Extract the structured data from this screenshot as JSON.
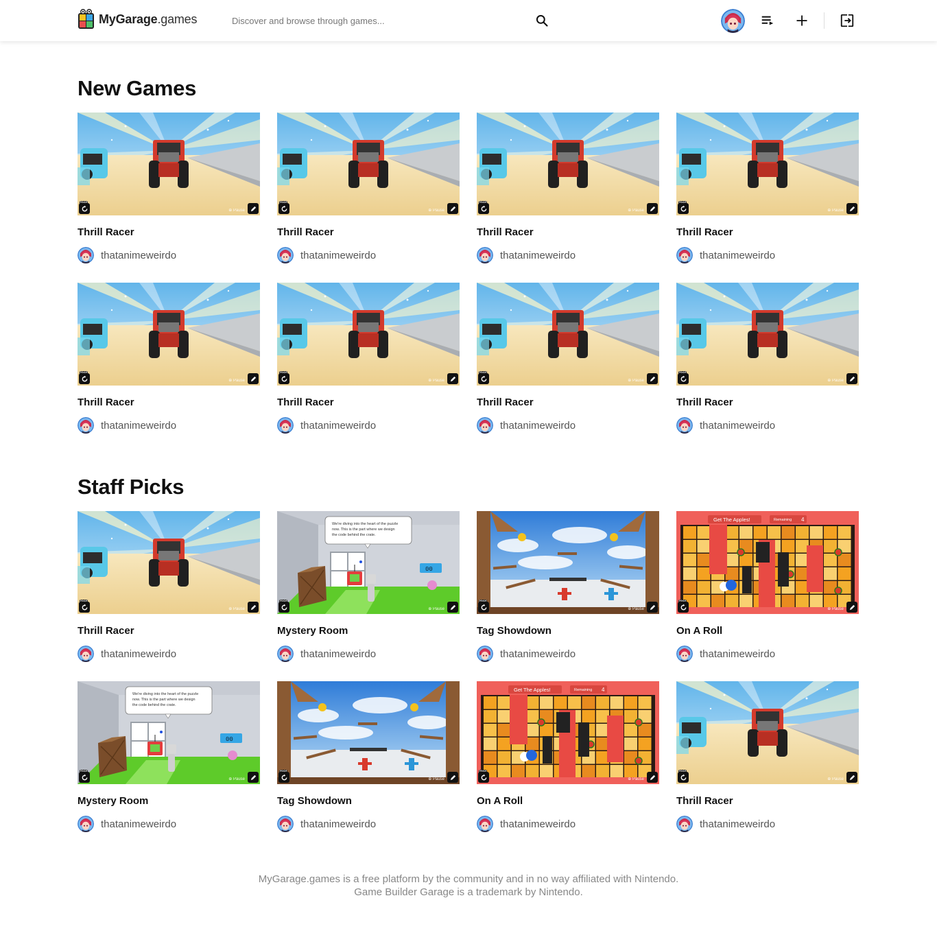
{
  "header": {
    "logo_bold": "MyGarage",
    "logo_light": ".games",
    "search_placeholder": "Discover and browse through games..."
  },
  "sections": [
    {
      "title": "New Games",
      "games": [
        {
          "title": "Thrill Racer",
          "author": "thatanimeweirdo",
          "scene": "racer"
        },
        {
          "title": "Thrill Racer",
          "author": "thatanimeweirdo",
          "scene": "racer"
        },
        {
          "title": "Thrill Racer",
          "author": "thatanimeweirdo",
          "scene": "racer"
        },
        {
          "title": "Thrill Racer",
          "author": "thatanimeweirdo",
          "scene": "racer"
        },
        {
          "title": "Thrill Racer",
          "author": "thatanimeweirdo",
          "scene": "racer"
        },
        {
          "title": "Thrill Racer",
          "author": "thatanimeweirdo",
          "scene": "racer"
        },
        {
          "title": "Thrill Racer",
          "author": "thatanimeweirdo",
          "scene": "racer"
        },
        {
          "title": "Thrill Racer",
          "author": "thatanimeweirdo",
          "scene": "racer"
        }
      ]
    },
    {
      "title": "Staff Picks",
      "games": [
        {
          "title": "Thrill Racer",
          "author": "thatanimeweirdo",
          "scene": "racer"
        },
        {
          "title": "Mystery Room",
          "author": "thatanimeweirdo",
          "scene": "mystery"
        },
        {
          "title": "Tag Showdown",
          "author": "thatanimeweirdo",
          "scene": "tag"
        },
        {
          "title": "On A Roll",
          "author": "thatanimeweirdo",
          "scene": "roll"
        },
        {
          "title": "Mystery Room",
          "author": "thatanimeweirdo",
          "scene": "mystery"
        },
        {
          "title": "Tag Showdown",
          "author": "thatanimeweirdo",
          "scene": "tag"
        },
        {
          "title": "On A Roll",
          "author": "thatanimeweirdo",
          "scene": "roll"
        },
        {
          "title": "Thrill Racer",
          "author": "thatanimeweirdo",
          "scene": "racer"
        }
      ]
    }
  ],
  "thumbnail_text": {
    "hold": "Hold",
    "pause": "Pause",
    "mystery_dialog": [
      "We're diving into the heart of the puzzle",
      "now. This is the part where we design",
      "the code behind the crate."
    ],
    "mystery_counter": "00",
    "roll_banner": "Get The Apples!",
    "roll_remaining_label": "Remaining",
    "roll_remaining_value": "4"
  },
  "footer": {
    "line1": "MyGarage.games is a free platform by the community and in no way affiliated with Nintendo.",
    "line2": "Game Builder Garage is a trademark by Nintendo."
  },
  "colors": {
    "accent_red": "#e53935",
    "sky": "#7fc4ee",
    "sand": "#f1d9a0",
    "roll_red": "#f0605a",
    "grass": "#5ecb2a"
  },
  "icons": {
    "search": "search-icon",
    "playlist": "playlist-icon",
    "add": "plus-icon",
    "logout": "logout-icon"
  }
}
